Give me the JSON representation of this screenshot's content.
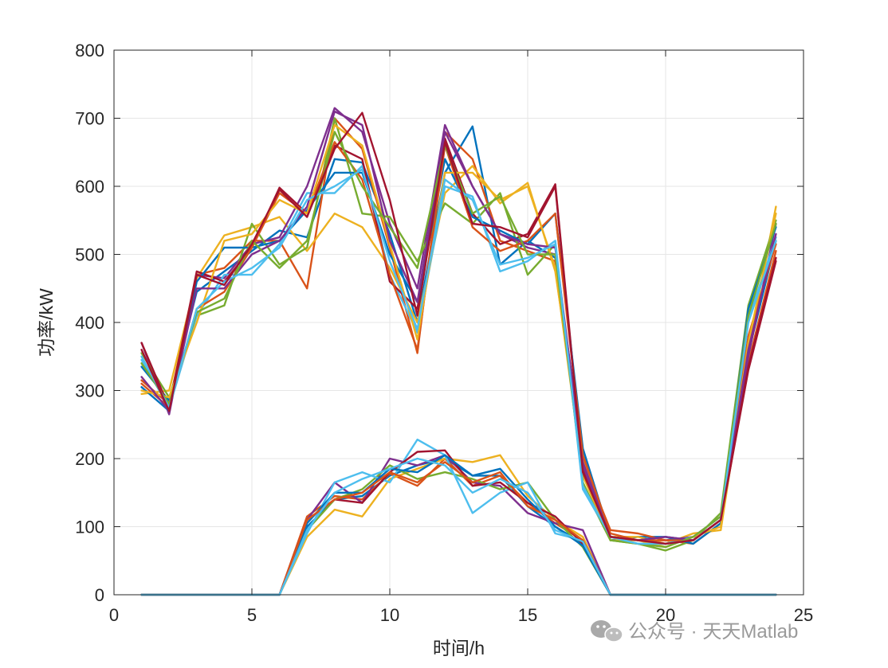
{
  "chart_data": {
    "type": "line",
    "title": "",
    "xlabel": "时间/h",
    "ylabel": "功率/kW",
    "xlim": [
      0,
      25
    ],
    "ylim": [
      0,
      800
    ],
    "xticks": [
      0,
      5,
      10,
      15,
      20,
      25
    ],
    "yticks": [
      0,
      100,
      200,
      300,
      400,
      500,
      600,
      700,
      800
    ],
    "grid": true,
    "x": [
      1,
      2,
      3,
      4,
      5,
      6,
      7,
      8,
      9,
      10,
      11,
      12,
      13,
      14,
      15,
      16,
      17,
      18,
      19,
      20,
      21,
      22,
      23,
      24
    ],
    "series": [
      {
        "color": "#0072BD",
        "values": [
          335,
          285,
          445,
          475,
          505,
          535,
          525,
          640,
          635,
          530,
          400,
          620,
          688,
          485,
          520,
          495,
          205,
          80,
          85,
          85,
          80,
          110,
          355,
          520
        ]
      },
      {
        "color": "#D95319",
        "values": [
          315,
          280,
          470,
          480,
          520,
          520,
          450,
          700,
          655,
          510,
          355,
          680,
          640,
          520,
          505,
          490,
          195,
          95,
          90,
          80,
          75,
          105,
          340,
          505
        ]
      },
      {
        "color": "#EDB120",
        "values": [
          295,
          300,
          465,
          528,
          540,
          555,
          505,
          560,
          540,
          480,
          400,
          590,
          630,
          575,
          605,
          475,
          200,
          85,
          85,
          75,
          90,
          95,
          360,
          570
        ]
      },
      {
        "color": "#7E2F8E",
        "values": [
          370,
          265,
          470,
          465,
          515,
          525,
          600,
          715,
          680,
          545,
          450,
          690,
          600,
          530,
          510,
          500,
          195,
          85,
          80,
          80,
          85,
          115,
          350,
          545
        ]
      },
      {
        "color": "#77AC30",
        "values": [
          355,
          290,
          410,
          425,
          545,
          485,
          510,
          700,
          560,
          555,
          490,
          575,
          545,
          590,
          470,
          515,
          160,
          80,
          75,
          65,
          80,
          120,
          425,
          550
        ]
      },
      {
        "color": "#4DBEEE",
        "values": [
          345,
          275,
          410,
          470,
          470,
          515,
          590,
          590,
          630,
          470,
          385,
          600,
          585,
          475,
          490,
          520,
          155,
          85,
          75,
          75,
          85,
          115,
          405,
          525
        ]
      },
      {
        "color": "#A2142F",
        "values": [
          370,
          275,
          475,
          460,
          510,
          598,
          560,
          660,
          640,
          460,
          420,
          670,
          560,
          515,
          530,
          603,
          185,
          85,
          80,
          75,
          80,
          110,
          330,
          490
        ]
      },
      {
        "color": "#0072BD",
        "values": [
          305,
          270,
          460,
          510,
          510,
          520,
          565,
          620,
          620,
          500,
          430,
          640,
          555,
          535,
          515,
          560,
          215,
          85,
          80,
          85,
          75,
          105,
          420,
          540
        ]
      },
      {
        "color": "#D95319",
        "values": [
          310,
          275,
          420,
          445,
          510,
          590,
          560,
          665,
          610,
          470,
          360,
          660,
          540,
          505,
          520,
          560,
          205,
          90,
          80,
          80,
          80,
          110,
          380,
          515
        ]
      },
      {
        "color": "#EDB120",
        "values": [
          300,
          290,
          400,
          520,
          530,
          580,
          560,
          690,
          660,
          515,
          375,
          620,
          620,
          580,
          600,
          480,
          175,
          80,
          80,
          70,
          85,
          100,
          370,
          560
        ]
      },
      {
        "color": "#7E2F8E",
        "values": [
          320,
          270,
          450,
          450,
          500,
          520,
          570,
          710,
          690,
          520,
          430,
          680,
          600,
          530,
          515,
          510,
          190,
          85,
          80,
          85,
          80,
          110,
          360,
          530
        ]
      },
      {
        "color": "#77AC30",
        "values": [
          340,
          280,
          415,
          435,
          520,
          480,
          520,
          680,
          600,
          540,
          480,
          660,
          560,
          585,
          500,
          500,
          165,
          80,
          75,
          70,
          85,
          115,
          410,
          545
        ]
      },
      {
        "color": "#4DBEEE",
        "values": [
          350,
          275,
          420,
          460,
          480,
          510,
          580,
          600,
          625,
          490,
          390,
          610,
          580,
          485,
          495,
          515,
          160,
          85,
          75,
          75,
          80,
          110,
          400,
          520
        ]
      },
      {
        "color": "#A2142F",
        "values": [
          360,
          270,
          470,
          455,
          515,
          595,
          555,
          655,
          708,
          580,
          410,
          665,
          545,
          540,
          525,
          600,
          180,
          85,
          80,
          75,
          80,
          110,
          335,
          495
        ]
      },
      {
        "color": "#0072BD",
        "values": [
          0,
          0,
          0,
          0,
          0,
          0,
          100,
          140,
          145,
          175,
          190,
          200,
          175,
          175,
          130,
          100,
          75,
          0,
          0,
          0,
          0,
          0,
          0,
          0
        ]
      },
      {
        "color": "#D95319",
        "values": [
          0,
          0,
          0,
          0,
          0,
          0,
          115,
          145,
          140,
          178,
          160,
          200,
          160,
          175,
          135,
          105,
          80,
          0,
          0,
          0,
          0,
          0,
          0,
          0
        ]
      },
      {
        "color": "#EDB120",
        "values": [
          0,
          0,
          0,
          0,
          0,
          0,
          85,
          125,
          115,
          170,
          185,
          200,
          195,
          205,
          145,
          110,
          85,
          0,
          0,
          0,
          0,
          0,
          0,
          0
        ]
      },
      {
        "color": "#7E2F8E",
        "values": [
          0,
          0,
          0,
          0,
          0,
          0,
          110,
          165,
          135,
          200,
          190,
          205,
          165,
          160,
          120,
          105,
          95,
          0,
          0,
          0,
          0,
          0,
          0,
          0
        ]
      },
      {
        "color": "#77AC30",
        "values": [
          0,
          0,
          0,
          0,
          0,
          0,
          95,
          140,
          155,
          190,
          170,
          180,
          170,
          155,
          165,
          110,
          70,
          0,
          0,
          0,
          0,
          0,
          0,
          0
        ]
      },
      {
        "color": "#4DBEEE",
        "values": [
          0,
          0,
          0,
          0,
          0,
          0,
          90,
          165,
          180,
          165,
          228,
          205,
          120,
          150,
          165,
          90,
          80,
          0,
          0,
          0,
          0,
          0,
          0,
          0
        ]
      },
      {
        "color": "#A2142F",
        "values": [
          0,
          0,
          0,
          0,
          0,
          0,
          110,
          140,
          135,
          180,
          210,
          212,
          160,
          165,
          135,
          115,
          75,
          0,
          0,
          0,
          0,
          0,
          0,
          0
        ]
      },
      {
        "color": "#0072BD",
        "values": [
          0,
          0,
          0,
          0,
          0,
          0,
          105,
          150,
          150,
          185,
          180,
          205,
          175,
          185,
          140,
          100,
          72,
          0,
          0,
          0,
          0,
          0,
          0,
          0
        ]
      },
      {
        "color": "#D95319",
        "values": [
          0,
          0,
          0,
          0,
          0,
          0,
          110,
          140,
          150,
          180,
          165,
          195,
          165,
          180,
          130,
          110,
          80,
          0,
          0,
          0,
          0,
          0,
          0,
          0
        ]
      },
      {
        "color": "#4DBEEE",
        "values": [
          0,
          0,
          0,
          0,
          0,
          0,
          95,
          150,
          170,
          185,
          200,
          190,
          150,
          170,
          150,
          95,
          78,
          0,
          0,
          0,
          0,
          0,
          0,
          0
        ]
      }
    ]
  },
  "watermark": {
    "text": "公众号 · 天天Matlab",
    "icon": "wechat-icon"
  }
}
